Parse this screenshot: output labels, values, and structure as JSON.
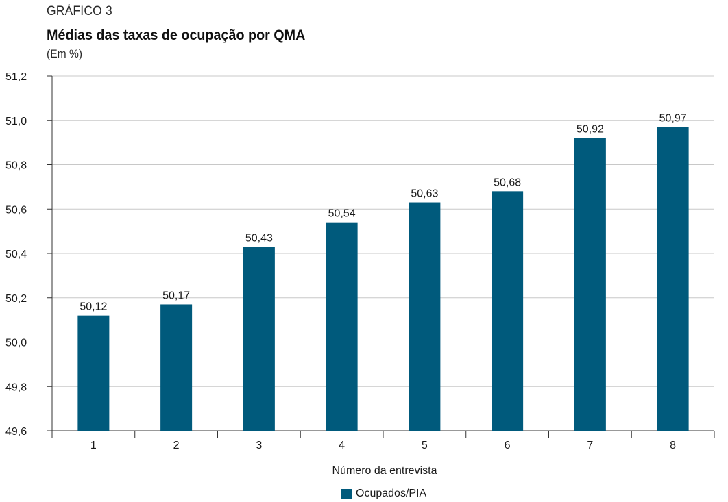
{
  "header": {
    "kicker": "GRÁFICO 3",
    "title": "Médias das taxas de ocupação por QMA",
    "subtitle": "(Em %)"
  },
  "colors": {
    "bar": "#005a7c",
    "grid": "#c8c8c8",
    "axis": "#333333"
  },
  "chart_data": {
    "type": "bar",
    "title": "Médias das taxas de ocupação por QMA",
    "subtitle": "(Em %)",
    "xlabel": "Número da entrevista",
    "ylabel": "",
    "categories": [
      "1",
      "2",
      "3",
      "4",
      "5",
      "6",
      "7",
      "8"
    ],
    "series": [
      {
        "name": "Ocupados/PIA",
        "values": [
          50.12,
          50.17,
          50.43,
          50.54,
          50.63,
          50.68,
          50.92,
          50.97
        ],
        "value_labels": [
          "50,12",
          "50,17",
          "50,43",
          "50,54",
          "50,63",
          "50,68",
          "50,92",
          "50,97"
        ]
      }
    ],
    "ylim": [
      49.6,
      51.2
    ],
    "yticks": [
      49.6,
      49.8,
      50.0,
      50.2,
      50.4,
      50.6,
      50.8,
      51.0,
      51.2
    ],
    "ytick_labels": [
      "49,6",
      "49,8",
      "50,0",
      "50,2",
      "50,4",
      "50,6",
      "50,8",
      "51,0",
      "51,2"
    ],
    "grid": true,
    "legend": "bottom-center"
  }
}
